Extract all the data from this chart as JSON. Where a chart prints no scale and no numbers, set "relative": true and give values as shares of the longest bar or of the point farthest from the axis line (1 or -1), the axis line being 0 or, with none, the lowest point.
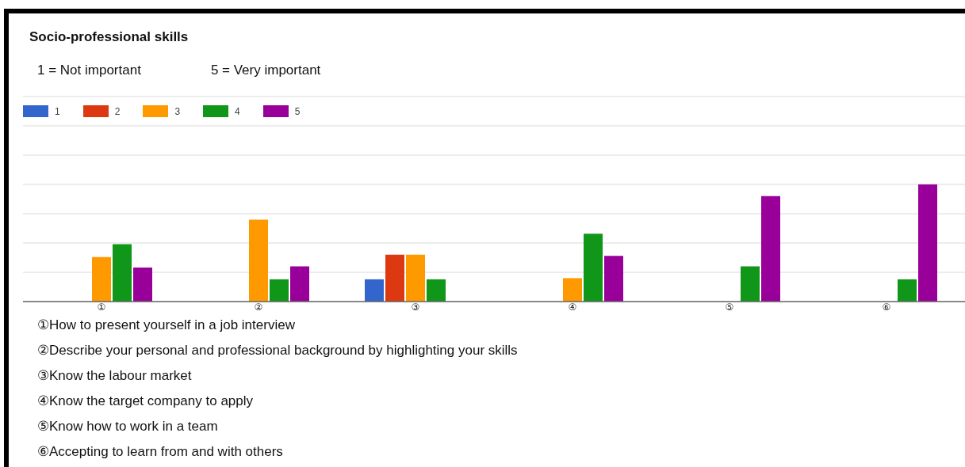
{
  "chart_data": {
    "type": "bar",
    "title": "Socio-professional skills",
    "subtitle": "1 = Not important\t5 = Very important",
    "categories": [
      "①",
      "②",
      "③",
      "④",
      "⑤",
      "⑥"
    ],
    "series": [
      {
        "name": "1",
        "color": "#3366cc",
        "values": [
          0,
          0,
          0.19,
          0,
          0,
          0
        ]
      },
      {
        "name": "2",
        "color": "#dc3912",
        "values": [
          0,
          0,
          0.4,
          0,
          0,
          0
        ]
      },
      {
        "name": "3",
        "color": "#ff9900",
        "values": [
          0.38,
          0.7,
          0.4,
          0.2,
          0,
          0
        ]
      },
      {
        "name": "4",
        "color": "#109618",
        "values": [
          0.49,
          0.19,
          0.19,
          0.58,
          0.3,
          0.19
        ]
      },
      {
        "name": "5",
        "color": "#990099",
        "values": [
          0.29,
          0.3,
          0,
          0.39,
          0.9,
          1
        ]
      }
    ],
    "relative": true,
    "grid": "y",
    "legend": "top left",
    "annotations": [
      "①How to present yourself in a job interview",
      "②Describe your personal and professional background by highlighting your skills",
      "③Know the labour market",
      "④Know the target company to apply",
      "⑤Know how to work in a team",
      "⑥Accepting to learn from and with others"
    ]
  }
}
